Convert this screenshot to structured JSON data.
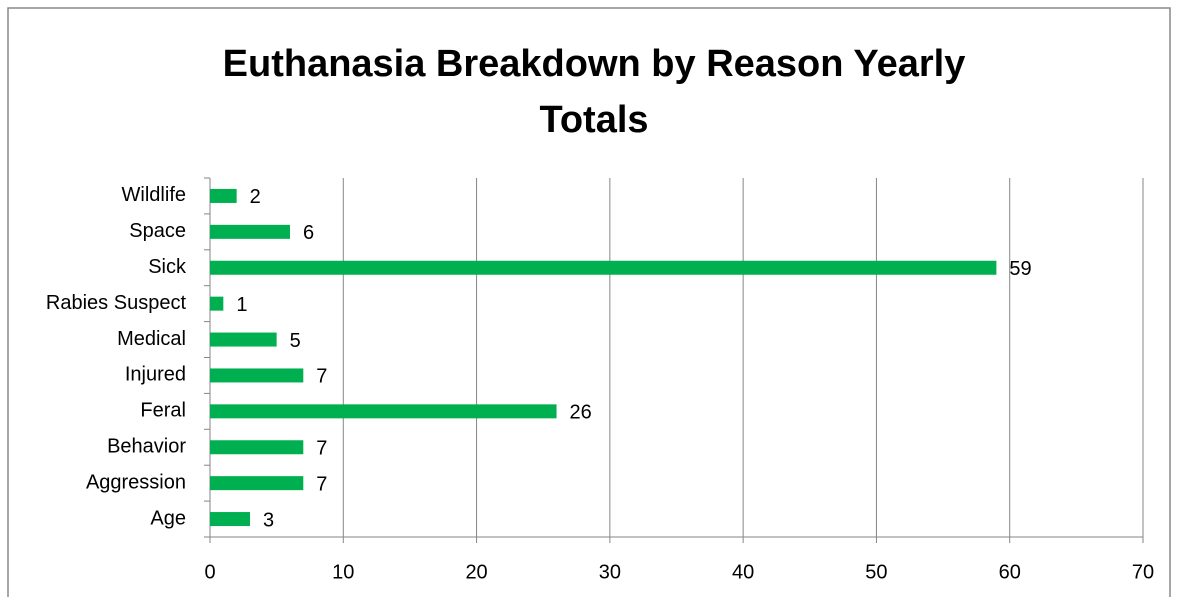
{
  "chart_data": {
    "type": "bar",
    "orientation": "horizontal",
    "title": "Euthanasia Breakdown by Reason Yearly Totals",
    "categories": [
      "Age",
      "Aggression",
      "Behavior",
      "Feral",
      "Injured",
      "Medical",
      "Rabies Suspect",
      "Sick",
      "Space",
      "Wildlife"
    ],
    "values": [
      3,
      7,
      7,
      26,
      7,
      5,
      1,
      59,
      6,
      2
    ],
    "color": "#00b050",
    "xlim": [
      0,
      70
    ],
    "xticks": [
      0,
      10,
      20,
      30,
      40,
      50,
      60,
      70
    ],
    "grid": true,
    "data_labels": true
  }
}
